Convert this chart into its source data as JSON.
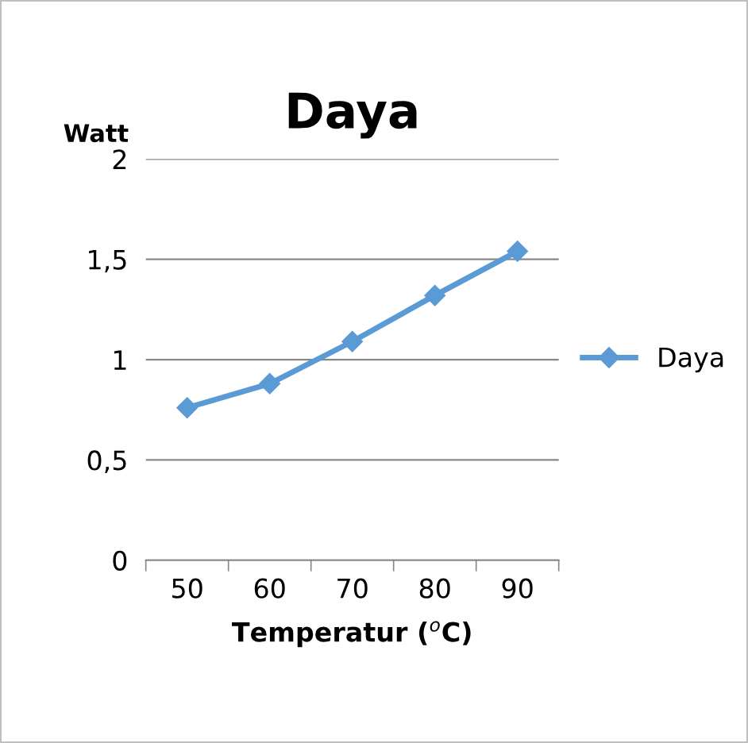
{
  "chart_data": {
    "type": "line",
    "title": "Daya",
    "xlabel": "Temperatur ($^{o}$C)",
    "ylabel": "Watt",
    "categories": [
      "50",
      "60",
      "70",
      "80",
      "90"
    ],
    "series": [
      {
        "name": "Daya",
        "color": "#5b9bd5",
        "values": [
          0.76,
          0.88,
          1.09,
          1.32,
          1.54
        ]
      }
    ],
    "ylim": [
      0,
      2
    ],
    "yticks": [
      0,
      {
        "value": 0.5,
        "label": "0,5"
      },
      1,
      {
        "value": 1.5,
        "label": "1,5"
      },
      2
    ],
    "grid": "y",
    "legend": "right",
    "marker": "diamond",
    "line_style": "solid"
  }
}
